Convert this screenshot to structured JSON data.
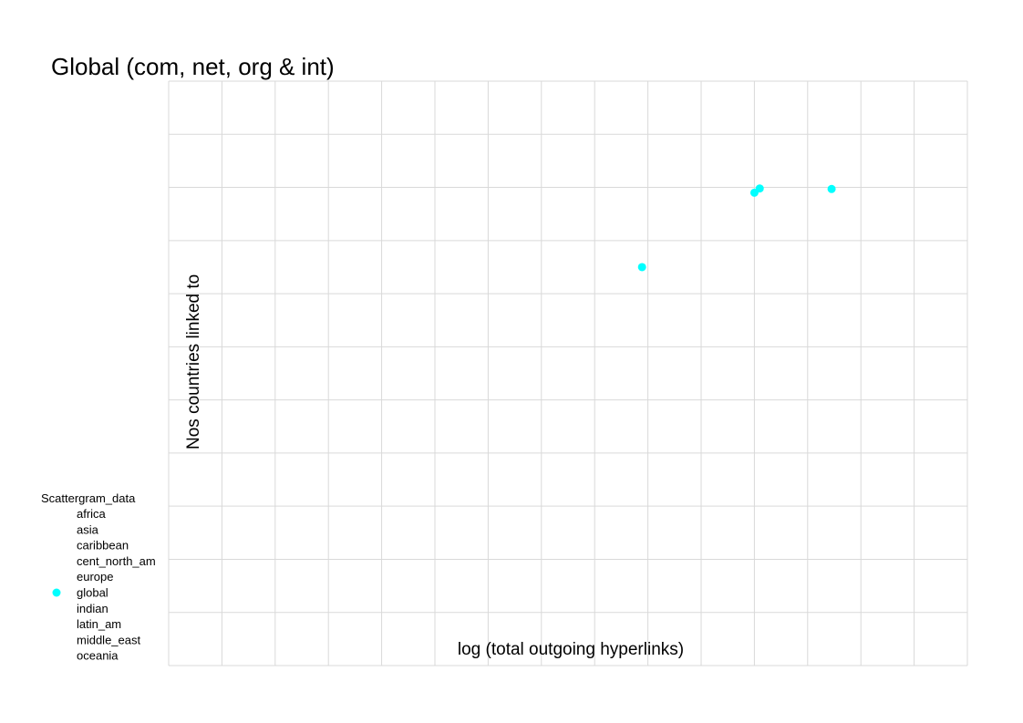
{
  "chart_data": {
    "type": "scatter",
    "title": "Global (com, net, org & int)",
    "xlabel": "log (total outgoing hyperlinks)",
    "ylabel": "Nos countries linked to",
    "xlim": [
      0,
      15
    ],
    "ylim": [
      0,
      11
    ],
    "x_gridlines": 15,
    "y_gridlines": 11,
    "grid": true,
    "tick_labels_shown": false,
    "legend": {
      "title": "Scattergram_data",
      "position": "bottom-left",
      "items": [
        "africa",
        "asia",
        "caribbean",
        "cent_north_am",
        "europe",
        "global",
        "indian",
        "latin_am",
        "middle_east",
        "oceania"
      ],
      "marked": [
        "global"
      ]
    },
    "series": [
      {
        "name": "global",
        "color": "#00ffff",
        "points": [
          {
            "x": 8.89,
            "y": 7.5
          },
          {
            "x": 11.0,
            "y": 8.9
          },
          {
            "x": 11.1,
            "y": 8.98
          },
          {
            "x": 12.45,
            "y": 8.97
          }
        ]
      }
    ]
  }
}
